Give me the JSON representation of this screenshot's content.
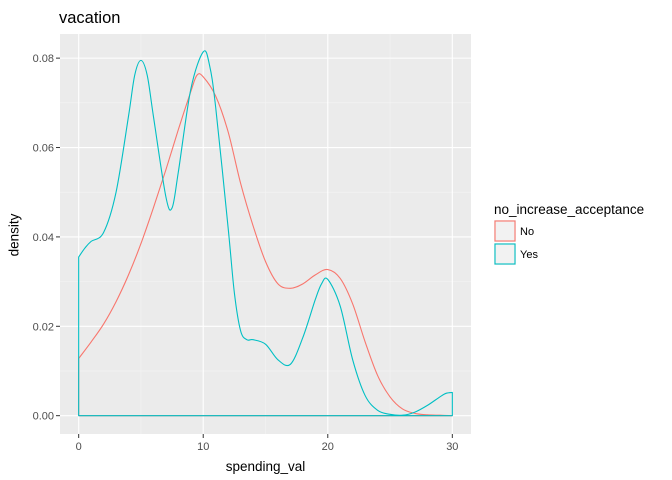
{
  "chart_data": {
    "type": "area",
    "title": "vacation",
    "xlabel": "spending_val",
    "ylabel": "density",
    "xlim": [
      -1.5,
      31.5
    ],
    "ylim": [
      -0.0041,
      0.0854
    ],
    "x_ticks": [
      0,
      10,
      20,
      30
    ],
    "x_tick_labels": [
      "0",
      "10",
      "20",
      "30"
    ],
    "y_ticks": [
      0.0,
      0.02,
      0.04,
      0.06,
      0.08
    ],
    "y_tick_labels": [
      "0.00",
      "0.02",
      "0.04",
      "0.06",
      "0.08"
    ],
    "grid": true,
    "legend": {
      "title": "no_increase_acceptance",
      "position": "right"
    },
    "series": [
      {
        "name": "No",
        "color": "#f8766d",
        "x": [
          0,
          1,
          2,
          3,
          4,
          5,
          6,
          7,
          8,
          9,
          9.5,
          10,
          11,
          12,
          13,
          14,
          15,
          16,
          17,
          18,
          19,
          20,
          21,
          22,
          23,
          24,
          25,
          26,
          27,
          28,
          29,
          30
        ],
        "y": [
          0.0128,
          0.0165,
          0.0205,
          0.0255,
          0.0315,
          0.0385,
          0.0465,
          0.055,
          0.064,
          0.0725,
          0.0762,
          0.0758,
          0.0715,
          0.0635,
          0.052,
          0.0425,
          0.0345,
          0.0295,
          0.0285,
          0.0295,
          0.0315,
          0.0327,
          0.0307,
          0.025,
          0.0165,
          0.009,
          0.0042,
          0.0015,
          0.0005,
          0.0002,
          0.0001,
          0.0
        ]
      },
      {
        "name": "Yes",
        "color": "#00bfc4",
        "x": [
          0,
          0.5,
          1,
          2,
          3,
          4,
          4.5,
          5,
          5.5,
          6,
          7,
          7.5,
          8,
          9,
          10,
          10.5,
          11,
          12,
          12.5,
          13,
          13.5,
          14,
          15,
          16,
          17,
          18,
          19,
          19.5,
          20,
          21,
          22,
          23,
          24,
          25,
          26,
          27,
          28,
          29,
          29.5,
          30
        ],
        "y": [
          0.0355,
          0.0375,
          0.039,
          0.041,
          0.05,
          0.067,
          0.0762,
          0.0795,
          0.0762,
          0.067,
          0.049,
          0.0465,
          0.0545,
          0.073,
          0.0814,
          0.0785,
          0.069,
          0.042,
          0.0275,
          0.019,
          0.017,
          0.017,
          0.016,
          0.0125,
          0.0115,
          0.0175,
          0.026,
          0.0295,
          0.0305,
          0.0245,
          0.0125,
          0.0045,
          0.0012,
          0.0003,
          0.0001,
          0.0008,
          0.0023,
          0.0042,
          0.005,
          0.0052
        ]
      }
    ]
  }
}
